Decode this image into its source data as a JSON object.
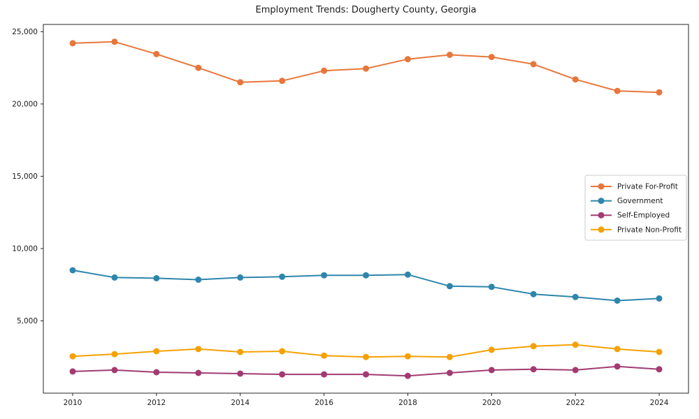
{
  "figure": {
    "background": "#ffffff",
    "frame_color": "#262626",
    "text_color": "#1a1a1a"
  },
  "chart_data": {
    "type": "line",
    "title": "Employment Trends: Dougherty County, Georgia",
    "xlabel": "",
    "ylabel": "",
    "x": [
      2010,
      2011,
      2012,
      2013,
      2014,
      2015,
      2016,
      2017,
      2018,
      2019,
      2020,
      2021,
      2022,
      2023,
      2024
    ],
    "series": [
      {
        "name": "Private For-Profit",
        "color": "#E8763B",
        "values": [
          24200,
          24300,
          23450,
          22500,
          21500,
          21600,
          22300,
          22450,
          23100,
          23400,
          23250,
          22750,
          21700,
          20900,
          20800
        ]
      },
      {
        "name": "Government",
        "color": "#2E86AB",
        "values": [
          8500,
          8000,
          7950,
          7850,
          8000,
          8050,
          8150,
          8150,
          8200,
          7400,
          7350,
          6850,
          6650,
          6400,
          6550
        ]
      },
      {
        "name": "Self-Employed",
        "color": "#A23B72",
        "values": [
          1500,
          1600,
          1450,
          1400,
          1350,
          1300,
          1300,
          1300,
          1200,
          1400,
          1600,
          1650,
          1600,
          1850,
          1650
        ]
      },
      {
        "name": "Private Non-Profit",
        "color": "#F5A105",
        "values": [
          2550,
          2700,
          2900,
          3050,
          2850,
          2900,
          2600,
          2500,
          2550,
          2500,
          3000,
          3250,
          3350,
          3050,
          2850
        ]
      }
    ],
    "xticks": {
      "values": [
        2010,
        2012,
        2014,
        2016,
        2018,
        2020,
        2022,
        2024
      ],
      "labels": [
        "2010",
        "2012",
        "2014",
        "2016",
        "2018",
        "2020",
        "2022",
        "2024"
      ]
    },
    "yticks": {
      "values": [
        5000,
        10000,
        15000,
        20000,
        25000
      ],
      "labels": [
        "5,000",
        "10,000",
        "15,000",
        "20,000",
        "25,000"
      ]
    },
    "xlim": [
      2009.3,
      2024.7
    ],
    "ylim": [
      0,
      25500
    ],
    "grid": false,
    "legend_position": "center right",
    "legend_entries": [
      "Private For-Profit",
      "Government",
      "Self-Employed",
      "Private Non-Profit"
    ]
  }
}
